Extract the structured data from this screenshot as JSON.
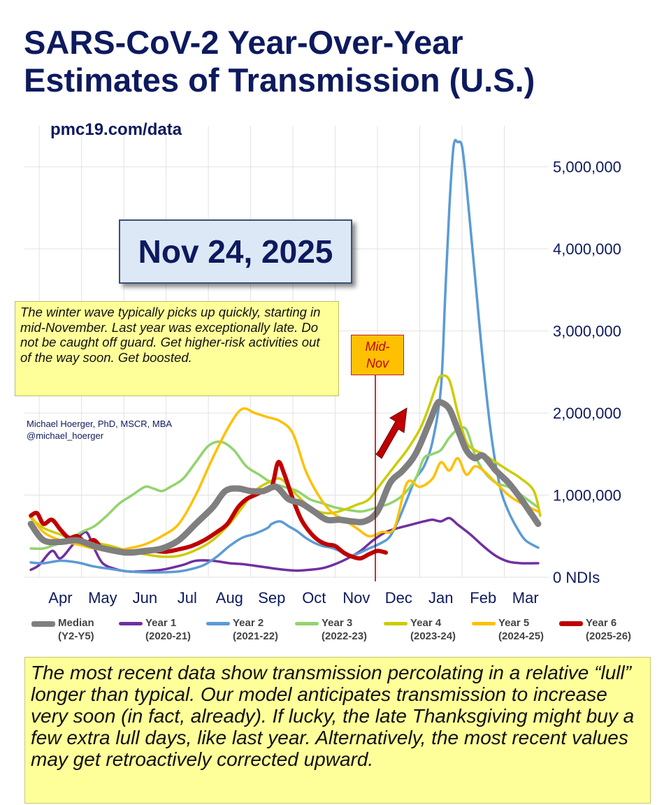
{
  "title_line1": "SARS-CoV-2 Year-Over-Year",
  "title_line2": "Estimates of Transmission (U.S.)",
  "source": "pmc19.com/data",
  "date_label": "Nov 24, 2025",
  "note": "The winter wave typically picks up quickly, starting in mid-November. Last year was exceptionally late. Do not be caught off guard. Get higher-risk activities out of the way soon. Get boosted.",
  "marker_label_line1": "Mid-",
  "marker_label_line2": "Nov",
  "author_line1": "Michael Hoerger, PhD, MSCR, MBA",
  "author_line2": "@michael_hoerger",
  "summary": "The most recent data show transmission percolating in a relative “lull” longer than typical. Our model anticipates transmission to increase very soon (in fact, already). If lucky, the late Thanksgiving might buy a few extra lull days, like last year. Alternatively, the most recent values may get retroactively corrected upward.",
  "colors": {
    "title": "#0d1a5e",
    "median": "#7f7f7f",
    "year1": "#7030a0",
    "year2": "#5b9bd5",
    "year3": "#92d36e",
    "year4": "#cccc00",
    "year5": "#ffc000",
    "year6": "#c00000"
  },
  "chart_data": {
    "type": "line",
    "title": "SARS-CoV-2 Year-Over-Year Estimates of Transmission (U.S.)",
    "ylabel": "NDIs",
    "ylim": [
      0,
      5500000
    ],
    "yticks": [
      0,
      1000000,
      2000000,
      3000000,
      4000000,
      5000000
    ],
    "ytick_labels": [
      "0 NDIs",
      "1,000,000",
      "2,000,000",
      "3,000,000",
      "4,000,000",
      "5,000,000"
    ],
    "x_unit": "months since start of March",
    "xlim": [
      0.15,
      12.55
    ],
    "categories": [
      "Apr",
      "May",
      "Jun",
      "Jul",
      "Aug",
      "Sep",
      "Oct",
      "Nov",
      "Dec",
      "Jan",
      "Feb",
      "Mar"
    ],
    "category_x": [
      1,
      2,
      3,
      4,
      5,
      6,
      7,
      8,
      9,
      10,
      11,
      12
    ],
    "marker": {
      "label": "Mid-Nov",
      "x": 8.45
    },
    "series": [
      {
        "key": "year1",
        "name": "Year 1",
        "sub": "(2020-21)",
        "x": [
          0.3,
          0.5,
          0.8,
          1.0,
          1.3,
          1.6,
          1.8,
          2.0,
          2.3,
          2.6,
          2.9,
          3.2,
          3.5,
          3.9,
          4.2,
          4.6,
          5.0,
          5.3,
          5.6,
          6.0,
          6.3,
          6.6,
          6.9,
          7.2,
          7.5,
          7.8,
          8.1,
          8.4,
          8.7,
          9.0,
          9.3,
          9.6,
          9.8,
          10.0,
          10.2,
          10.4,
          10.7,
          11.0,
          11.3,
          11.6,
          11.9,
          12.3
        ],
        "values": [
          90000,
          150000,
          320000,
          230000,
          400000,
          550000,
          350000,
          170000,
          100000,
          70000,
          70000,
          80000,
          100000,
          150000,
          200000,
          200000,
          170000,
          160000,
          140000,
          110000,
          90000,
          80000,
          90000,
          110000,
          160000,
          230000,
          320000,
          450000,
          550000,
          600000,
          640000,
          680000,
          700000,
          680000,
          720000,
          640000,
          520000,
          380000,
          260000,
          190000,
          170000,
          170000
        ]
      },
      {
        "key": "year2",
        "name": "Year 2",
        "sub": "(2021-22)",
        "x": [
          0.3,
          0.6,
          1.0,
          1.4,
          1.8,
          2.2,
          2.6,
          3.0,
          3.4,
          3.8,
          4.1,
          4.4,
          4.7,
          5.0,
          5.3,
          5.6,
          5.9,
          6.0,
          6.2,
          6.4,
          6.6,
          6.8,
          7.0,
          7.2,
          7.4,
          7.6,
          7.8,
          8.0,
          8.3,
          8.6,
          8.8,
          9.0,
          9.2,
          9.4,
          9.6,
          9.8,
          10.0,
          10.1,
          10.2,
          10.3,
          10.4,
          10.5,
          10.6,
          10.8,
          11.0,
          11.2,
          11.4,
          11.6,
          11.8,
          12.0,
          12.3
        ],
        "values": [
          180000,
          170000,
          200000,
          180000,
          130000,
          100000,
          70000,
          60000,
          60000,
          70000,
          100000,
          150000,
          250000,
          380000,
          480000,
          530000,
          600000,
          650000,
          680000,
          620000,
          560000,
          480000,
          420000,
          380000,
          360000,
          320000,
          260000,
          280000,
          350000,
          420000,
          500000,
          700000,
          950000,
          1200000,
          1350000,
          1650000,
          2300000,
          3400000,
          4500000,
          5250000,
          5300000,
          5250000,
          4800000,
          3700000,
          2600000,
          1700000,
          1100000,
          800000,
          600000,
          450000,
          360000
        ]
      },
      {
        "key": "year3",
        "name": "Year 3",
        "sub": "(2022-23)",
        "x": [
          0.3,
          0.6,
          0.9,
          1.2,
          1.5,
          1.8,
          2.1,
          2.4,
          2.7,
          3.0,
          3.2,
          3.4,
          3.6,
          3.9,
          4.2,
          4.5,
          4.8,
          5.1,
          5.4,
          5.7,
          6.0,
          6.3,
          6.6,
          6.9,
          7.2,
          7.5,
          7.8,
          8.1,
          8.3,
          8.5,
          8.8,
          9.1,
          9.4,
          9.6,
          9.8,
          10.0,
          10.2,
          10.4,
          10.6,
          10.8,
          11.0,
          11.3,
          11.6,
          11.9,
          12.3
        ],
        "values": [
          350000,
          350000,
          400000,
          450000,
          550000,
          620000,
          750000,
          900000,
          1000000,
          1100000,
          1080000,
          1050000,
          1100000,
          1200000,
          1400000,
          1600000,
          1650000,
          1550000,
          1350000,
          1250000,
          1150000,
          1100000,
          1050000,
          950000,
          900000,
          850000,
          820000,
          800000,
          820000,
          850000,
          900000,
          1000000,
          1200000,
          1450000,
          1500000,
          1550000,
          1700000,
          1800000,
          1800000,
          1500000,
          1300000,
          1150000,
          1100000,
          1000000,
          850000
        ]
      },
      {
        "key": "year4",
        "name": "Year 4",
        "sub": "(2023-24)",
        "x": [
          0.3,
          0.6,
          1.0,
          1.4,
          1.8,
          2.2,
          2.6,
          3.0,
          3.4,
          3.8,
          4.2,
          4.6,
          5.0,
          5.3,
          5.6,
          5.9,
          6.2,
          6.5,
          6.8,
          7.1,
          7.4,
          7.7,
          8.0,
          8.3,
          8.6,
          8.9,
          9.2,
          9.5,
          9.7,
          9.9,
          10.0,
          10.2,
          10.4,
          10.6,
          10.8,
          11.0,
          11.3,
          11.6,
          11.9,
          12.2,
          12.35
        ],
        "values": [
          720000,
          600000,
          520000,
          450000,
          420000,
          380000,
          320000,
          280000,
          250000,
          260000,
          330000,
          450000,
          650000,
          850000,
          1050000,
          1150000,
          1200000,
          1050000,
          900000,
          800000,
          780000,
          820000,
          880000,
          950000,
          1150000,
          1350000,
          1550000,
          1800000,
          2050000,
          2350000,
          2450000,
          2400000,
          2000000,
          1650000,
          1550000,
          1500000,
          1400000,
          1300000,
          1200000,
          1050000,
          750000
        ]
      },
      {
        "key": "year5",
        "name": "Year 5",
        "sub": "(2024-25)",
        "x": [
          0.3,
          0.6,
          1.0,
          1.4,
          1.8,
          2.2,
          2.6,
          3.0,
          3.4,
          3.8,
          4.2,
          4.6,
          5.0,
          5.3,
          5.6,
          5.9,
          6.2,
          6.5,
          6.8,
          7.1,
          7.4,
          7.7,
          8.0,
          8.3,
          8.6,
          8.9,
          9.2,
          9.5,
          9.8,
          10.0,
          10.2,
          10.4,
          10.6,
          10.8,
          11.0,
          11.3,
          11.6,
          11.9,
          12.3
        ],
        "values": [
          750000,
          550000,
          450000,
          400000,
          350000,
          320000,
          350000,
          400000,
          500000,
          650000,
          1000000,
          1450000,
          1850000,
          2050000,
          2000000,
          1950000,
          1900000,
          1750000,
          1300000,
          1000000,
          800000,
          700000,
          600000,
          500000,
          550000,
          600000,
          1150000,
          1100000,
          1200000,
          1400000,
          1300000,
          1450000,
          1250000,
          1350000,
          1300000,
          1150000,
          1000000,
          900000,
          800000
        ]
      },
      {
        "key": "year6",
        "name": "Year 6",
        "sub": "(2025-26)",
        "x": [
          0.3,
          0.45,
          0.6,
          0.8,
          1.0,
          1.2,
          1.4,
          1.6,
          1.8,
          2.0,
          2.3,
          2.6,
          2.9,
          3.2,
          3.5,
          3.8,
          4.1,
          4.4,
          4.7,
          4.95,
          5.2,
          5.4,
          5.6,
          5.8,
          6.0,
          6.15,
          6.3,
          6.5,
          6.7,
          6.9,
          7.1,
          7.3,
          7.5,
          7.7,
          7.9,
          8.1,
          8.3,
          8.5,
          8.7
        ],
        "values": [
          750000,
          780000,
          650000,
          700000,
          580000,
          480000,
          500000,
          420000,
          450000,
          350000,
          330000,
          300000,
          300000,
          320000,
          310000,
          340000,
          380000,
          450000,
          550000,
          650000,
          850000,
          950000,
          1000000,
          1050000,
          1100000,
          1400000,
          1250000,
          950000,
          700000,
          550000,
          450000,
          400000,
          380000,
          300000,
          250000,
          230000,
          280000,
          320000,
          300000
        ]
      },
      {
        "key": "median",
        "name": "Median",
        "sub": "(Y2-Y5)",
        "x": [
          0.3,
          0.6,
          1.0,
          1.4,
          1.8,
          2.2,
          2.6,
          3.0,
          3.4,
          3.8,
          4.2,
          4.6,
          4.9,
          5.2,
          5.5,
          5.8,
          6.1,
          6.4,
          6.7,
          7.0,
          7.3,
          7.6,
          7.9,
          8.2,
          8.5,
          8.8,
          9.1,
          9.4,
          9.7,
          9.9,
          10.0,
          10.2,
          10.4,
          10.6,
          10.8,
          11.0,
          11.3,
          11.6,
          11.9,
          12.3
        ],
        "values": [
          650000,
          450000,
          430000,
          450000,
          380000,
          330000,
          300000,
          320000,
          350000,
          450000,
          650000,
          850000,
          1050000,
          1080000,
          1050000,
          1050000,
          1100000,
          950000,
          900000,
          800000,
          700000,
          700000,
          680000,
          680000,
          800000,
          1150000,
          1300000,
          1500000,
          1850000,
          2100000,
          2130000,
          2050000,
          1800000,
          1550000,
          1450000,
          1480000,
          1300000,
          1150000,
          950000,
          650000
        ]
      }
    ]
  }
}
